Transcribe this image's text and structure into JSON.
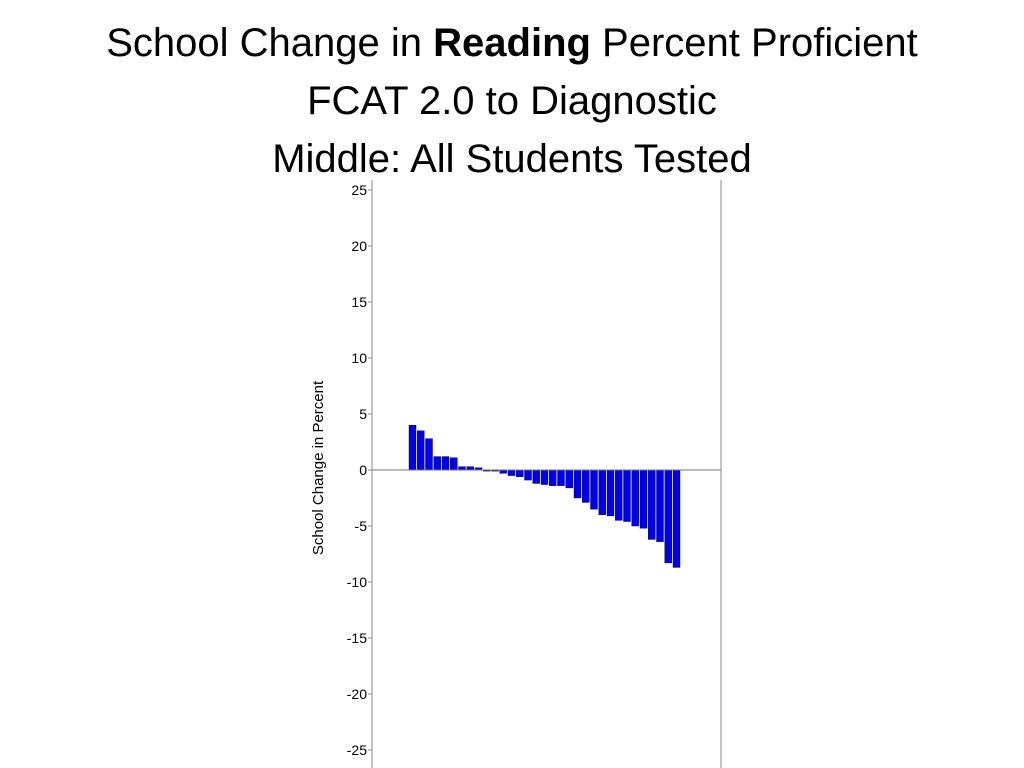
{
  "slide": {
    "title_line1_pre": "School Change in ",
    "title_line1_bold": "Reading",
    "title_line1_post": " Percent Proficient",
    "title_line2": "FCAT 2.0 to Diagnostic",
    "title_line3": "Middle: All Students Tested"
  },
  "chart_data": {
    "type": "bar",
    "title": "School Change in Reading Percent Proficient FCAT 2.0 to Diagnostic Middle: All Students Tested",
    "ylabel": "School Change in Percent",
    "xlabel": "",
    "ylim": [
      -25,
      25
    ],
    "yticks": [
      25,
      20,
      15,
      10,
      5,
      0,
      -5,
      -10,
      -15,
      -20,
      -25
    ],
    "grid": false,
    "bar_color": "#0000ee",
    "values": [
      4.0,
      3.5,
      2.8,
      1.2,
      1.2,
      1.1,
      0.3,
      0.3,
      0.2,
      -0.1,
      -0.1,
      -0.3,
      -0.5,
      -0.6,
      -0.9,
      -1.2,
      -1.3,
      -1.4,
      -1.4,
      -1.6,
      -2.5,
      -2.9,
      -3.5,
      -4.0,
      -4.1,
      -4.5,
      -4.6,
      -5.0,
      -5.2,
      -6.2,
      -6.4,
      -8.3,
      -8.7
    ]
  }
}
